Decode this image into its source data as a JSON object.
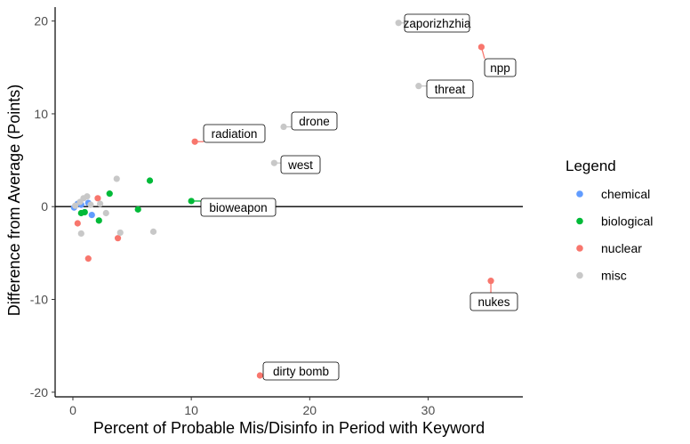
{
  "chart_data": {
    "type": "scatter",
    "title": "",
    "xlabel": "Percent of Probable Mis/Disinfo in Period with Keyword",
    "ylabel": "Difference from Average (Points)",
    "xlim": [
      -1.5,
      38
    ],
    "ylim": [
      -20.5,
      21.5
    ],
    "x_ticks": [
      0,
      10,
      20,
      30
    ],
    "y_ticks": [
      -20,
      -10,
      0,
      10,
      20
    ],
    "grid": false,
    "reference_line_y": 0,
    "legend": {
      "title": "Legend",
      "position": "right",
      "entries": [
        {
          "name": "chemical",
          "color": "#619CFF"
        },
        {
          "name": "biological",
          "color": "#00BA38"
        },
        {
          "name": "nuclear",
          "color": "#F8766D"
        },
        {
          "name": "misc",
          "color": "#C8C8C8"
        }
      ]
    },
    "series": [
      {
        "name": "chemical",
        "color": "#619CFF",
        "points": [
          {
            "x": 0.1,
            "y": -0.1
          },
          {
            "x": 0.4,
            "y": 0.3
          },
          {
            "x": 0.7,
            "y": 0.2
          },
          {
            "x": 1.3,
            "y": 0.4
          },
          {
            "x": 1.6,
            "y": -0.9
          }
        ]
      },
      {
        "name": "biological",
        "color": "#00BA38",
        "points": [
          {
            "x": 0.7,
            "y": -0.7
          },
          {
            "x": 1.0,
            "y": -0.6
          },
          {
            "x": 2.2,
            "y": -1.5
          },
          {
            "x": 3.1,
            "y": 1.4
          },
          {
            "x": 5.5,
            "y": -0.3
          },
          {
            "x": 6.5,
            "y": 2.8
          },
          {
            "x": 10.0,
            "y": 0.6,
            "label": "bioweapon"
          }
        ]
      },
      {
        "name": "nuclear",
        "color": "#F8766D",
        "points": [
          {
            "x": 0.4,
            "y": -1.8
          },
          {
            "x": 1.3,
            "y": -5.6
          },
          {
            "x": 2.1,
            "y": 0.9
          },
          {
            "x": 3.8,
            "y": -3.4
          },
          {
            "x": 10.3,
            "y": 7.0,
            "label": "radiation"
          },
          {
            "x": 15.8,
            "y": -18.2,
            "label": "dirty bomb"
          },
          {
            "x": 34.5,
            "y": 17.2,
            "label": "npp"
          },
          {
            "x": 35.3,
            "y": -8.0,
            "label": "nukes"
          }
        ]
      },
      {
        "name": "misc",
        "color": "#C8C8C8",
        "points": [
          {
            "x": 0.2,
            "y": 0.1
          },
          {
            "x": 0.6,
            "y": 0.5
          },
          {
            "x": 0.7,
            "y": -2.9
          },
          {
            "x": 0.9,
            "y": 0.9
          },
          {
            "x": 1.2,
            "y": 1.1
          },
          {
            "x": 1.5,
            "y": 0.2
          },
          {
            "x": 2.3,
            "y": 0.3
          },
          {
            "x": 2.8,
            "y": -0.7
          },
          {
            "x": 3.7,
            "y": 3.0
          },
          {
            "x": 4.0,
            "y": -2.8
          },
          {
            "x": 6.8,
            "y": -2.7
          },
          {
            "x": 17.0,
            "y": 4.7,
            "label": "west"
          },
          {
            "x": 17.8,
            "y": 8.6,
            "label": "drone"
          },
          {
            "x": 27.5,
            "y": 19.8,
            "label": "zaporizhzhia"
          },
          {
            "x": 29.2,
            "y": 13.0,
            "label": "threat"
          }
        ]
      }
    ]
  }
}
